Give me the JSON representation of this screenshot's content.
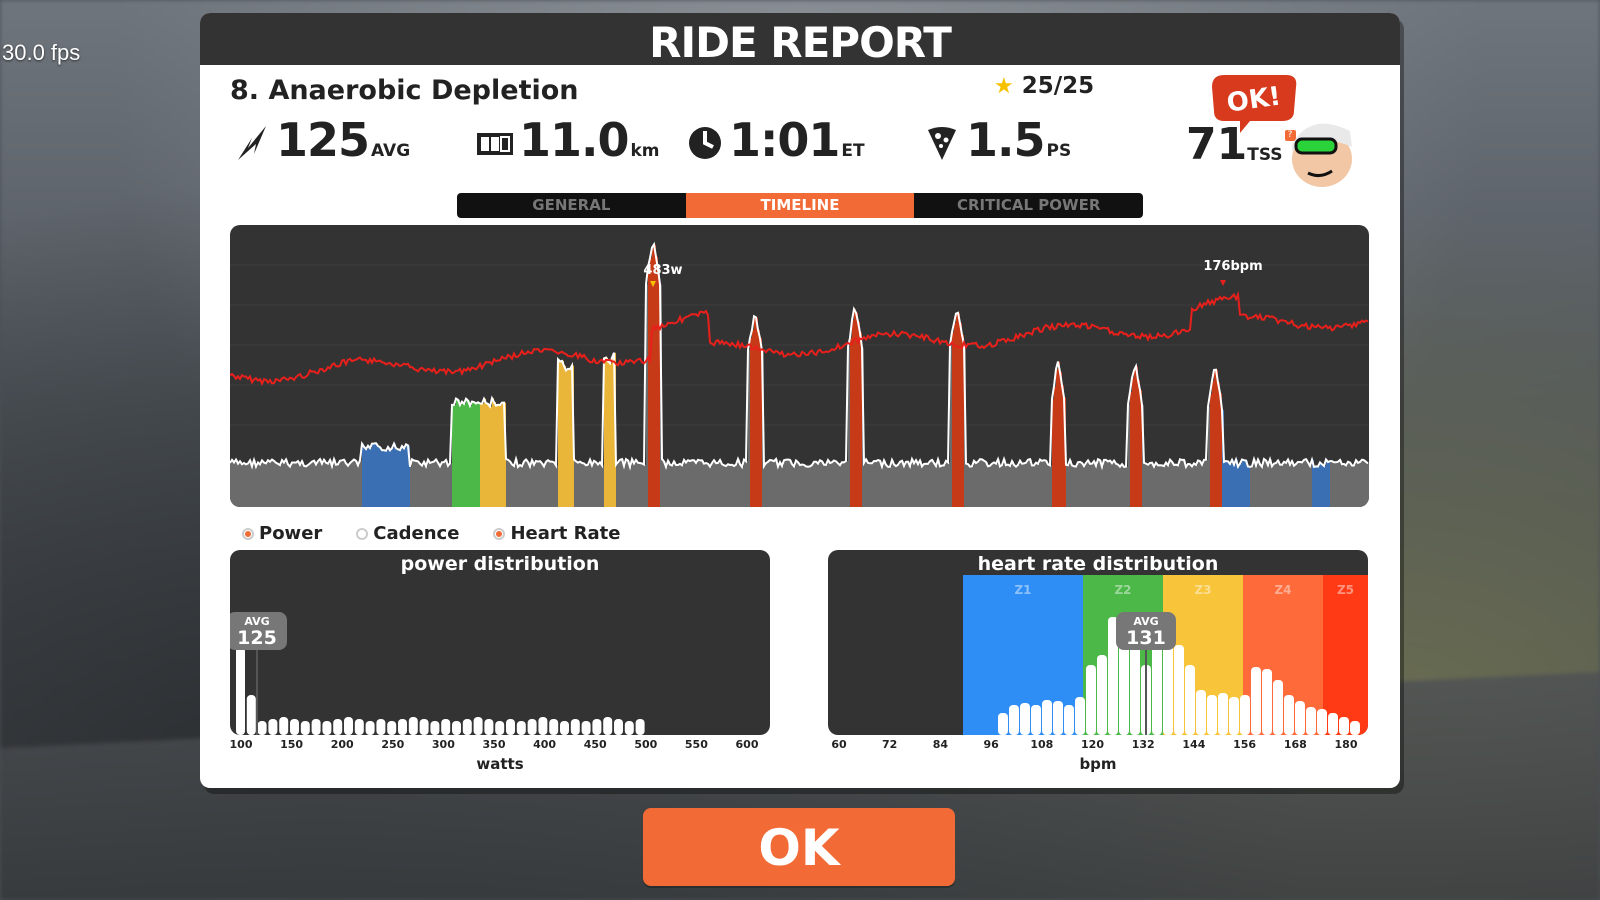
{
  "overlay": {
    "fps": "30.0 fps"
  },
  "header": {
    "title": "RIDE REPORT"
  },
  "workout": {
    "title": "8. Anaerobic Depletion",
    "stars": "25/25"
  },
  "stats": {
    "power": {
      "value": "125",
      "unit": "AVG"
    },
    "distance": {
      "value": "11.0",
      "unit": "km"
    },
    "time": {
      "value": "1:01",
      "unit": "ET"
    },
    "pizza": {
      "value": "1.5",
      "unit": "PS"
    },
    "tss": {
      "value": "71",
      "unit": "TSS",
      "help": "?"
    }
  },
  "mascot": {
    "bubble": "OK!"
  },
  "tabs": [
    {
      "label": "GENERAL",
      "active": false
    },
    {
      "label": "TIMELINE",
      "active": true
    },
    {
      "label": "CRITICAL POWER",
      "active": false
    }
  ],
  "timeline": {
    "peak_power_label": "483w",
    "peak_hr_label": "176bpm"
  },
  "legend": [
    {
      "label": "Power",
      "on": true
    },
    {
      "label": "Cadence",
      "on": false
    },
    {
      "label": "Heart Rate",
      "on": true
    }
  ],
  "power_dist": {
    "title": "power distribution",
    "avg_label": "AVG",
    "avg_value": "125",
    "xlabel": "watts",
    "ticks": [
      "100",
      "150",
      "200",
      "250",
      "300",
      "350",
      "400",
      "450",
      "500",
      "550",
      "600"
    ]
  },
  "hr_dist": {
    "title": "heart rate distribution",
    "avg_label": "AVG",
    "avg_value": "131",
    "xlabel": "bpm",
    "ticks": [
      "60",
      "72",
      "84",
      "96",
      "108",
      "120",
      "132",
      "144",
      "156",
      "168",
      "180"
    ],
    "zones": [
      "Z1",
      "Z2",
      "Z3",
      "Z4",
      "Z5"
    ]
  },
  "colors": {
    "accent": "#f26b36",
    "zone_blue": "#2f8ef5",
    "zone_green": "#4cb848",
    "zone_yellow": "#f8c43a",
    "zone_orange": "#ff6a3a",
    "zone_red": "#ff3a14",
    "hr_line": "#e8201c"
  },
  "ok_button": {
    "label": "OK"
  }
}
